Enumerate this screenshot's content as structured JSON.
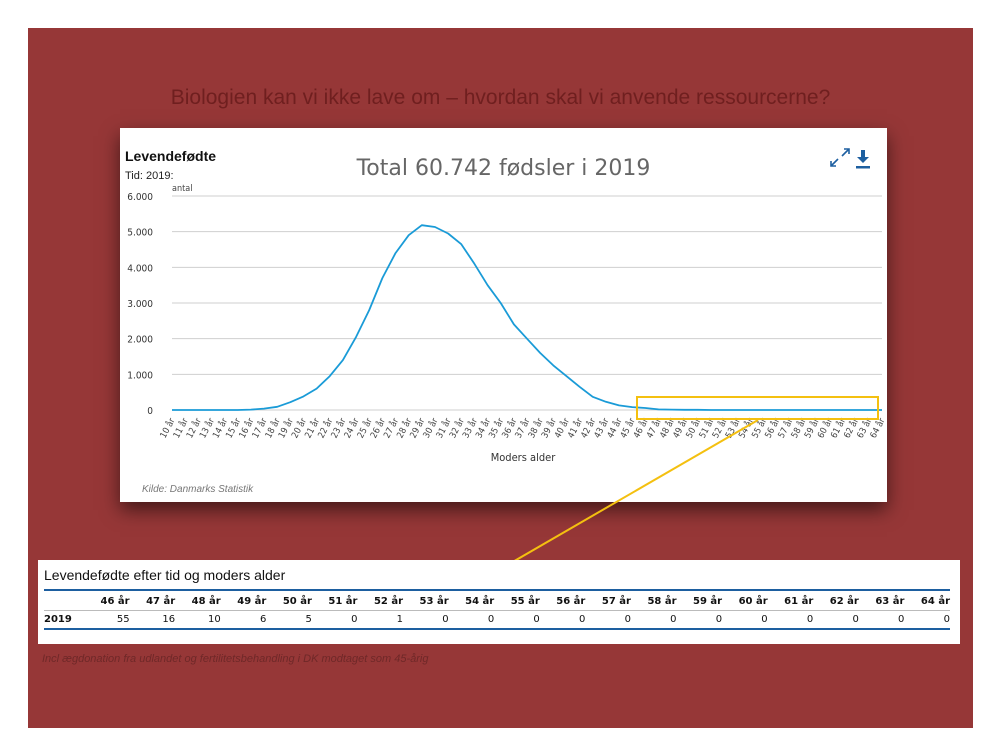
{
  "slide": {
    "title": "Biologien kan vi ikke lave om – hvordan skal vi anvende ressourcerne?",
    "footnote": "Incl ægdonation fra udlandet og fertilitetsbehandling i DK modtaget som 45-årig",
    "background_color": "#963737",
    "highlight_color": "#f4c010"
  },
  "chart_data": {
    "type": "line",
    "title": "Levendefødte",
    "subtitle": "Tid: 2019:",
    "overlay_text": "Total 60.742 fødsler i 2019",
    "ylabel": "antal",
    "xlabel": "Moders alder",
    "source": "Kilde: Danmarks Statistik",
    "ylim": [
      0,
      6000
    ],
    "y_ticks": [
      "0",
      "1.000",
      "2.000",
      "3.000",
      "4.000",
      "5.000",
      "6.000"
    ],
    "grid": true,
    "line_color": "#1a9bd7",
    "categories": [
      "10 år",
      "11 år",
      "12 år",
      "13 år",
      "14 år",
      "15 år",
      "16 år",
      "17 år",
      "18 år",
      "19 år",
      "20 år",
      "21 år",
      "22 år",
      "23 år",
      "24 år",
      "25 år",
      "26 år",
      "27 år",
      "28 år",
      "29 år",
      "30 år",
      "31 år",
      "32 år",
      "33 år",
      "34 år",
      "35 år",
      "36 år",
      "37 år",
      "38 år",
      "39 år",
      "40 år",
      "41 år",
      "42 år",
      "43 år",
      "44 år",
      "45 år",
      "46 år",
      "47 år",
      "48 år",
      "49 år",
      "50 år",
      "51 år",
      "52 år",
      "53 år",
      "54 år",
      "55 år",
      "56 år",
      "57 år",
      "58 år",
      "59 år",
      "60 år",
      "61 år",
      "62 år",
      "63 år",
      "64 år"
    ],
    "series": [
      {
        "values": [
          0,
          0,
          0,
          0,
          0,
          0,
          10,
          40,
          90,
          220,
          380,
          600,
          950,
          1400,
          2050,
          2800,
          3700,
          4400,
          4900,
          5180,
          5130,
          4950,
          4650,
          4100,
          3500,
          3000,
          2400,
          2000,
          1600,
          1250,
          950,
          650,
          370,
          230,
          130,
          80,
          55,
          16,
          10,
          6,
          5,
          0,
          1,
          0,
          0,
          0,
          0,
          0,
          0,
          0,
          0,
          0,
          0,
          0,
          0
        ]
      }
    ]
  },
  "table": {
    "title": "Levendefødte efter tid og moders alder",
    "columns": [
      "46 år",
      "47 år",
      "48 år",
      "49 år",
      "50 år",
      "51 år",
      "52 år",
      "53 år",
      "54 år",
      "55 år",
      "56 år",
      "57 år",
      "58 år",
      "59 år",
      "60 år",
      "61 år",
      "62 år",
      "63 år",
      "64 år"
    ],
    "rows": [
      {
        "label": "2019",
        "values": [
          "55",
          "16",
          "10",
          "6",
          "5",
          "0",
          "1",
          "0",
          "0",
          "0",
          "0",
          "0",
          "0",
          "0",
          "0",
          "0",
          "0",
          "0",
          "0"
        ]
      }
    ]
  }
}
